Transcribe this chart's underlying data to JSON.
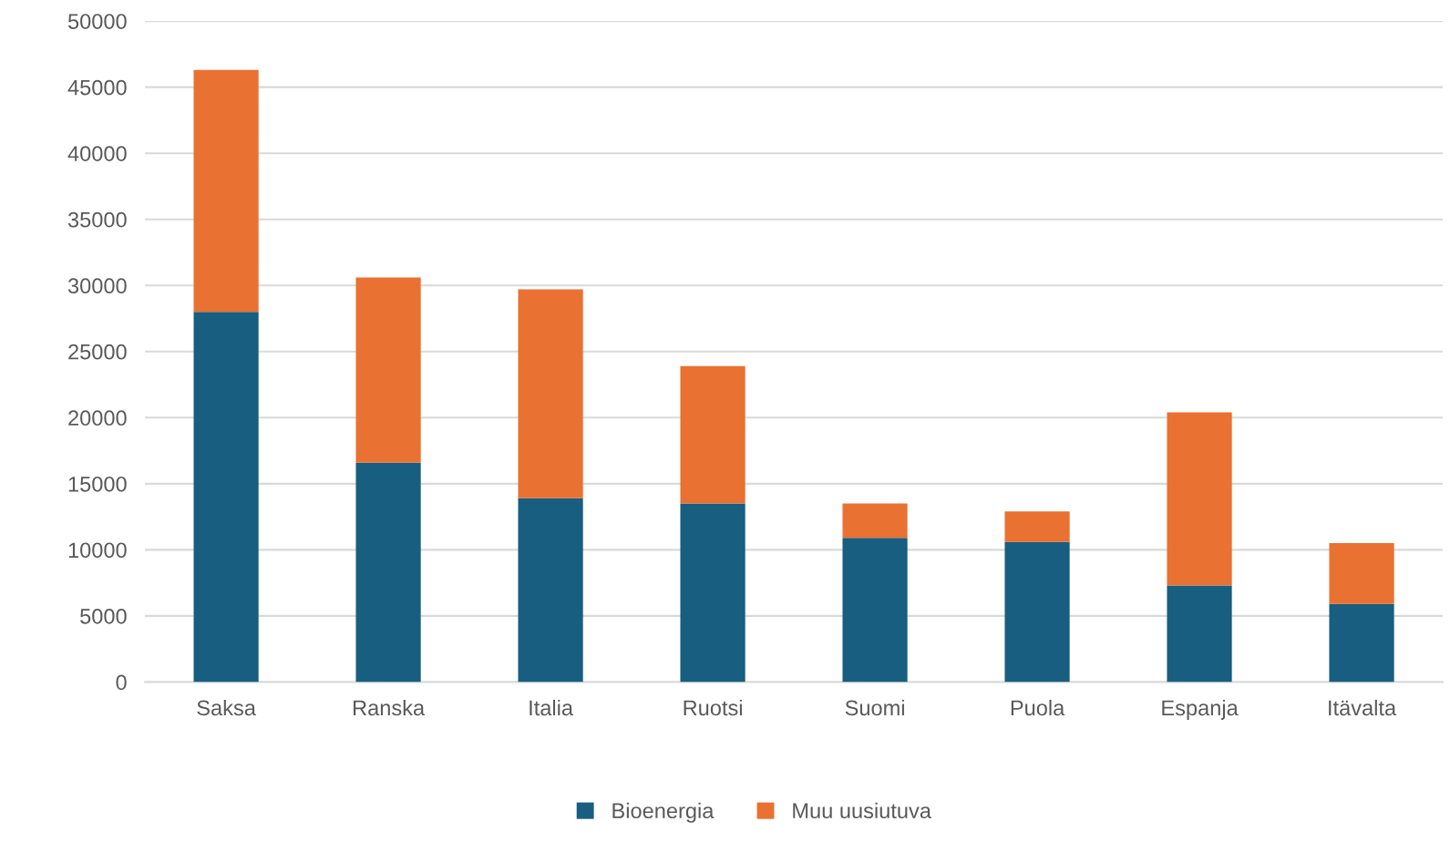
{
  "chart_data": {
    "type": "bar",
    "stacked": true,
    "categories": [
      "Saksa",
      "Ranska",
      "Italia",
      "Ruotsi",
      "Suomi",
      "Puola",
      "Espanja",
      "Itävalta"
    ],
    "series": [
      {
        "name": "Bioenergia",
        "color": "#175e80",
        "values": [
          28000,
          16600,
          13900,
          13500,
          10900,
          10600,
          7300,
          5900
        ]
      },
      {
        "name": "Muu uusiutuva",
        "color": "#e97132",
        "values": [
          18300,
          14000,
          15800,
          10400,
          2600,
          2300,
          13100,
          4600
        ]
      }
    ],
    "ylim": [
      0,
      50000
    ],
    "yticks": [
      0,
      5000,
      10000,
      15000,
      20000,
      25000,
      30000,
      35000,
      40000,
      45000,
      50000
    ],
    "grid": "y",
    "legend": "bottom"
  }
}
